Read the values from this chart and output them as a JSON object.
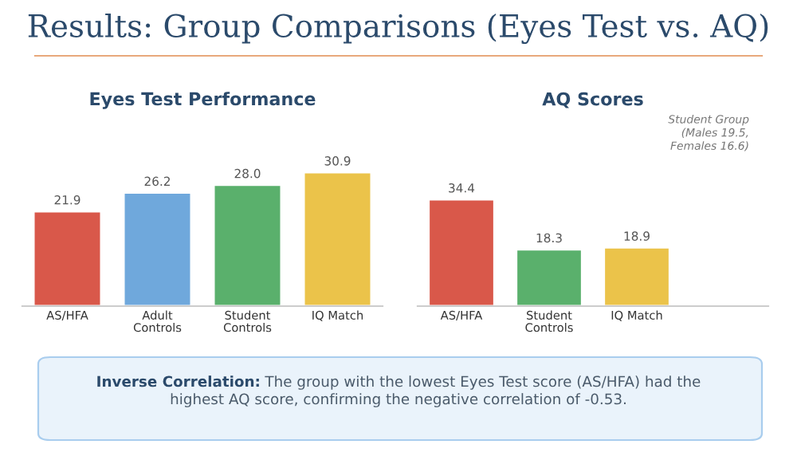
{
  "chart_data": [
    {
      "type": "bar",
      "title": "Eyes Test Performance",
      "categories": [
        "AS/HFA",
        "Adult\nControls",
        "Student\nControls",
        "IQ Match"
      ],
      "values": [
        21.9,
        26.2,
        28.0,
        30.9
      ],
      "value_labels": [
        "21.9",
        "26.2",
        "28.0",
        "30.9"
      ],
      "colors": [
        "#d9584a",
        "#6fa8dc",
        "#5ab06c",
        "#ebc34a"
      ],
      "grid": false,
      "legend": false
    },
    {
      "type": "bar",
      "title": "AQ Scores",
      "data_labels": true,
      "categories": [
        "AS/HFA",
        "Student\nControls",
        "IQ Match"
      ],
      "values": [
        34.4,
        18.3,
        18.9
      ],
      "colors": [
        "#d9584a",
        "#5ab06c",
        "#ebc34a"
      ],
      "grid": false,
      "legend": false,
      "annotations": [
        "Student Group\n(Males 19.5,\nFemales 16.6)"
      ]
    },
    {
      "type": "other",
      "title": "Results: Group Comparisons (Eyes Test vs. AQ)",
      "annotations": [
        "Inverse Correlation:",
        "The group with the lowest Eyes Test score (AS/HFA) had the\nhighest AQ score, confirming the negative correlation of -0.53."
      ]
    }
  ]
}
